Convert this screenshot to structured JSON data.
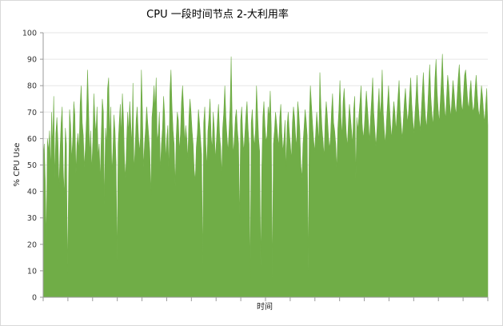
{
  "chart_data": {
    "type": "area",
    "title": "CPU 一段时间节点 2-大利用率",
    "xlabel": "时间",
    "ylabel": "% CPU Use",
    "ylim": [
      0,
      100
    ],
    "yticks": [
      "0",
      "10",
      "20",
      "30",
      "40",
      "50",
      "60",
      "70",
      "80",
      "90",
      "100"
    ],
    "grid": true,
    "legend": "none",
    "series_color": "#70ad47",
    "x_major_tick_count": 18,
    "series": [
      {
        "values": [
          52,
          58,
          44,
          21,
          60,
          55,
          63,
          48,
          70,
          57,
          76,
          45,
          62,
          68,
          59,
          41,
          56,
          66,
          72,
          48,
          38,
          64,
          58,
          9,
          42,
          71,
          65,
          52,
          60,
          74,
          69,
          47,
          58,
          62,
          55,
          73,
          80,
          66,
          61,
          49,
          57,
          68,
          86,
          71,
          54,
          63,
          48,
          59,
          77,
          67,
          62,
          72,
          53,
          58,
          44,
          61,
          75,
          70,
          35,
          64,
          57,
          79,
          83,
          60,
          72,
          47,
          55,
          69,
          63,
          51,
          14,
          58,
          66,
          73,
          61,
          77,
          68,
          52,
          45,
          59,
          70,
          62,
          74,
          65,
          58,
          81,
          48,
          56,
          67,
          72,
          63,
          55,
          60,
          86,
          70,
          49,
          58,
          64,
          72,
          66,
          61,
          55,
          38,
          68,
          73,
          80,
          71,
          83,
          59,
          62,
          70,
          48,
          58,
          64,
          76,
          69,
          52,
          60,
          65,
          47,
          78,
          86,
          72,
          63,
          58,
          42,
          61,
          70,
          67,
          55,
          62,
          74,
          80,
          71,
          58,
          65,
          60,
          52,
          68,
          75,
          70,
          63,
          58,
          48,
          44,
          57,
          62,
          71,
          66,
          60,
          54,
          13,
          66,
          72,
          58,
          49,
          63,
          68,
          75,
          61,
          56,
          70,
          64,
          52,
          59,
          67,
          73,
          62,
          57,
          46,
          64,
          70,
          80,
          68,
          61,
          55,
          63,
          72,
          91,
          66,
          54,
          60,
          68,
          71,
          63,
          58,
          28,
          67,
          72,
          61,
          55,
          62,
          69,
          74,
          64,
          58,
          7,
          66,
          71,
          62,
          57,
          63,
          80,
          70,
          60,
          55,
          12,
          49,
          68,
          74,
          65,
          59,
          61,
          72,
          68,
          78,
          64,
          8,
          58,
          63,
          70,
          66,
          61,
          57,
          68,
          73,
          62,
          55,
          60,
          67,
          48,
          65,
          70,
          63,
          58,
          52,
          66,
          72,
          68,
          61,
          57,
          74,
          70,
          63,
          50,
          45,
          58,
          64,
          71,
          67,
          61,
          10,
          68,
          80,
          73,
          66,
          60,
          55,
          62,
          70,
          65,
          58,
          85,
          72,
          64,
          59,
          53,
          67,
          74,
          69,
          62,
          56,
          60,
          70,
          77,
          66,
          63,
          58,
          48,
          64,
          71,
          82,
          68,
          61,
          74,
          79,
          70,
          62,
          57,
          66,
          73,
          68,
          63,
          58,
          71,
          76,
          45,
          68,
          63,
          69,
          74,
          80,
          66,
          60,
          64,
          71,
          78,
          72,
          66,
          59,
          68,
          75,
          83,
          70,
          64,
          57,
          63,
          72,
          79,
          68,
          74,
          86,
          70,
          63,
          58,
          66,
          73,
          80,
          72,
          65,
          60,
          68,
          74,
          70,
          63,
          69,
          76,
          82,
          71,
          65,
          60,
          67,
          74,
          79,
          72,
          66,
          70,
          77,
          83,
          73,
          67,
          62,
          69,
          76,
          84,
          74,
          68,
          63,
          70,
          78,
          85,
          75,
          68,
          64,
          71,
          80,
          88,
          76,
          70,
          65,
          72,
          83,
          90,
          78,
          71,
          66,
          74,
          82,
          92,
          79,
          72,
          67,
          76,
          84,
          80,
          73,
          68,
          75,
          82,
          78,
          72,
          69,
          76,
          83,
          88,
          79,
          73,
          70,
          77,
          84,
          86,
          80,
          74,
          71,
          78,
          82,
          75,
          70,
          72,
          79,
          84,
          77,
          71,
          68,
          74,
          80,
          76,
          70,
          66,
          73,
          79,
          65
        ]
      }
    ]
  }
}
